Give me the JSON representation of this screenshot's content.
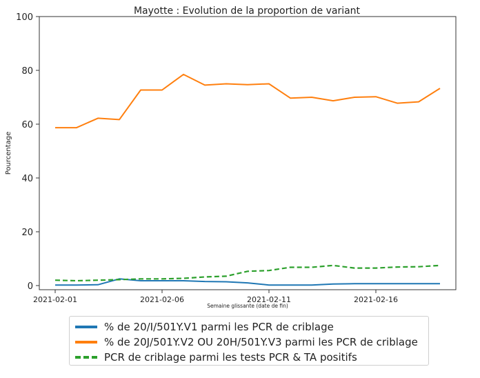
{
  "chart_data": {
    "type": "line",
    "title": "Mayotte : Evolution de la proportion de variant",
    "xlabel": "Semaine glissante (date de fin)",
    "ylabel": "Pourcentage",
    "ylim": [
      0,
      100
    ],
    "yticks": [
      0,
      20,
      40,
      60,
      80,
      100
    ],
    "x": [
      "2021-02-01",
      "2021-02-02",
      "2021-02-03",
      "2021-02-04",
      "2021-02-05",
      "2021-02-06",
      "2021-02-07",
      "2021-02-08",
      "2021-02-09",
      "2021-02-10",
      "2021-02-11",
      "2021-02-12",
      "2021-02-13",
      "2021-02-14",
      "2021-02-15",
      "2021-02-16",
      "2021-02-17",
      "2021-02-18",
      "2021-02-19"
    ],
    "xticks": [
      "2021-02-01",
      "2021-02-06",
      "2021-02-11",
      "2021-02-16"
    ],
    "grid": false,
    "legend_position": "below",
    "series": [
      {
        "name": "% de 20/I/501Y.V1 parmi les PCR de criblage",
        "color": "#1f77b4",
        "style": "solid",
        "values": [
          0.2,
          0.2,
          0.3,
          2.5,
          1.8,
          1.8,
          1.8,
          1.5,
          1.4,
          1.0,
          0.2,
          0.2,
          0.2,
          0.6,
          0.7,
          0.7,
          0.7,
          0.7,
          0.7
        ]
      },
      {
        "name": "% de 20J/501Y.V2 OU 20H/501Y.V3 parmi les PCR de criblage",
        "color": "#ff7f0e",
        "style": "solid",
        "values": [
          58.7,
          58.7,
          62.2,
          61.7,
          72.7,
          72.7,
          78.5,
          74.5,
          75.0,
          74.7,
          75.0,
          69.7,
          70.0,
          68.7,
          70.0,
          70.2,
          67.8,
          68.3,
          73.3
        ]
      },
      {
        "name": "PCR de criblage parmi les tests PCR & TA positifs",
        "color": "#2ca02c",
        "style": "dashed",
        "values": [
          2.0,
          1.8,
          2.0,
          2.2,
          2.5,
          2.5,
          2.7,
          3.2,
          3.5,
          5.3,
          5.6,
          6.8,
          6.8,
          7.5,
          6.5,
          6.5,
          6.9,
          7.0,
          7.5
        ]
      }
    ]
  }
}
